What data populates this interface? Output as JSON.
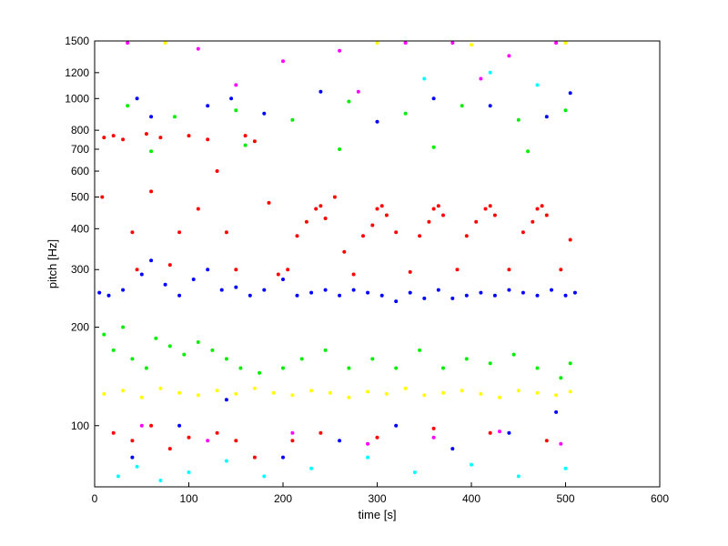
{
  "chart_data": {
    "type": "scatter",
    "title": "",
    "xlabel": "time [s]",
    "ylabel": "pitch [Hz]",
    "xlim": [
      0,
      600
    ],
    "ylim": [
      65,
      1500
    ],
    "yscale": "log",
    "grid": false,
    "legend": "none",
    "x_ticks": [
      0,
      100,
      200,
      300,
      400,
      500,
      600
    ],
    "y_ticks": [
      100,
      200,
      300,
      400,
      500,
      600,
      700,
      800,
      1000,
      1200,
      1500
    ],
    "series": [
      {
        "color": "#ff0000",
        "points": [
          [
            8,
            500
          ],
          [
            10,
            760
          ],
          [
            20,
            770
          ],
          [
            30,
            750
          ],
          [
            40,
            390
          ],
          [
            45,
            300
          ],
          [
            55,
            780
          ],
          [
            60,
            520
          ],
          [
            70,
            760
          ],
          [
            80,
            310
          ],
          [
            90,
            390
          ],
          [
            100,
            770
          ],
          [
            110,
            460
          ],
          [
            120,
            750
          ],
          [
            130,
            600
          ],
          [
            140,
            390
          ],
          [
            150,
            300
          ],
          [
            160,
            770
          ],
          [
            170,
            740
          ],
          [
            185,
            480
          ],
          [
            195,
            290
          ],
          [
            205,
            300
          ],
          [
            215,
            380
          ],
          [
            225,
            420
          ],
          [
            235,
            460
          ],
          [
            240,
            470
          ],
          [
            245,
            430
          ],
          [
            255,
            500
          ],
          [
            265,
            340
          ],
          [
            275,
            290
          ],
          [
            285,
            380
          ],
          [
            295,
            410
          ],
          [
            300,
            460
          ],
          [
            305,
            470
          ],
          [
            310,
            440
          ],
          [
            320,
            390
          ],
          [
            335,
            295
          ],
          [
            345,
            380
          ],
          [
            355,
            420
          ],
          [
            360,
            460
          ],
          [
            365,
            470
          ],
          [
            370,
            440
          ],
          [
            385,
            300
          ],
          [
            395,
            380
          ],
          [
            405,
            420
          ],
          [
            415,
            460
          ],
          [
            420,
            470
          ],
          [
            425,
            440
          ],
          [
            440,
            300
          ],
          [
            455,
            390
          ],
          [
            465,
            420
          ],
          [
            470,
            460
          ],
          [
            475,
            470
          ],
          [
            480,
            440
          ],
          [
            495,
            300
          ],
          [
            505,
            370
          ],
          [
            20,
            95
          ],
          [
            40,
            90
          ],
          [
            60,
            100
          ],
          [
            80,
            85
          ],
          [
            100,
            92
          ],
          [
            130,
            95
          ],
          [
            150,
            90
          ],
          [
            170,
            80
          ],
          [
            210,
            90
          ],
          [
            240,
            95
          ],
          [
            300,
            92
          ],
          [
            360,
            98
          ],
          [
            420,
            95
          ],
          [
            480,
            90
          ]
        ]
      },
      {
        "color": "#0000ff",
        "points": [
          [
            5,
            255
          ],
          [
            15,
            250
          ],
          [
            30,
            260
          ],
          [
            45,
            1000
          ],
          [
            50,
            290
          ],
          [
            60,
            320
          ],
          [
            75,
            270
          ],
          [
            90,
            250
          ],
          [
            105,
            280
          ],
          [
            120,
            300
          ],
          [
            135,
            260
          ],
          [
            145,
            1000
          ],
          [
            150,
            265
          ],
          [
            165,
            250
          ],
          [
            180,
            260
          ],
          [
            200,
            280
          ],
          [
            215,
            250
          ],
          [
            230,
            255
          ],
          [
            245,
            260
          ],
          [
            260,
            250
          ],
          [
            275,
            260
          ],
          [
            290,
            255
          ],
          [
            305,
            250
          ],
          [
            320,
            240
          ],
          [
            335,
            255
          ],
          [
            350,
            245
          ],
          [
            365,
            260
          ],
          [
            380,
            245
          ],
          [
            395,
            250
          ],
          [
            410,
            255
          ],
          [
            425,
            250
          ],
          [
            440,
            260
          ],
          [
            455,
            255
          ],
          [
            470,
            250
          ],
          [
            485,
            260
          ],
          [
            500,
            250
          ],
          [
            510,
            255
          ],
          [
            40,
            80
          ],
          [
            90,
            100
          ],
          [
            140,
            120
          ],
          [
            200,
            80
          ],
          [
            260,
            90
          ],
          [
            320,
            100
          ],
          [
            380,
            85
          ],
          [
            440,
            95
          ],
          [
            490,
            110
          ],
          [
            60,
            880
          ],
          [
            120,
            950
          ],
          [
            180,
            900
          ],
          [
            240,
            1050
          ],
          [
            300,
            850
          ],
          [
            360,
            1000
          ],
          [
            420,
            950
          ],
          [
            480,
            880
          ],
          [
            505,
            1040
          ]
        ]
      },
      {
        "color": "#00ee00",
        "points": [
          [
            10,
            190
          ],
          [
            20,
            170
          ],
          [
            30,
            200
          ],
          [
            40,
            160
          ],
          [
            55,
            150
          ],
          [
            65,
            185
          ],
          [
            80,
            175
          ],
          [
            95,
            165
          ],
          [
            110,
            180
          ],
          [
            125,
            170
          ],
          [
            140,
            160
          ],
          [
            155,
            150
          ],
          [
            175,
            145
          ],
          [
            200,
            150
          ],
          [
            220,
            160
          ],
          [
            245,
            170
          ],
          [
            270,
            150
          ],
          [
            295,
            160
          ],
          [
            320,
            150
          ],
          [
            345,
            170
          ],
          [
            370,
            150
          ],
          [
            395,
            160
          ],
          [
            420,
            155
          ],
          [
            445,
            165
          ],
          [
            470,
            150
          ],
          [
            495,
            140
          ],
          [
            505,
            155
          ],
          [
            35,
            950
          ],
          [
            85,
            880
          ],
          [
            150,
            920
          ],
          [
            210,
            860
          ],
          [
            270,
            980
          ],
          [
            330,
            900
          ],
          [
            390,
            950
          ],
          [
            450,
            860
          ],
          [
            500,
            920
          ],
          [
            60,
            690
          ],
          [
            160,
            720
          ],
          [
            260,
            700
          ],
          [
            360,
            710
          ],
          [
            460,
            690
          ]
        ]
      },
      {
        "color": "#ffff00",
        "points": [
          [
            10,
            125
          ],
          [
            30,
            128
          ],
          [
            50,
            122
          ],
          [
            70,
            130
          ],
          [
            90,
            126
          ],
          [
            110,
            124
          ],
          [
            130,
            128
          ],
          [
            150,
            125
          ],
          [
            170,
            130
          ],
          [
            190,
            126
          ],
          [
            210,
            124
          ],
          [
            230,
            128
          ],
          [
            250,
            126
          ],
          [
            270,
            122
          ],
          [
            290,
            127
          ],
          [
            310,
            125
          ],
          [
            330,
            130
          ],
          [
            350,
            124
          ],
          [
            370,
            126
          ],
          [
            390,
            128
          ],
          [
            410,
            125
          ],
          [
            430,
            122
          ],
          [
            450,
            128
          ],
          [
            470,
            126
          ],
          [
            490,
            124
          ],
          [
            505,
            127
          ],
          [
            75,
            1480
          ],
          [
            300,
            1480
          ],
          [
            400,
            1460
          ],
          [
            500,
            1480
          ]
        ]
      },
      {
        "color": "#00ffff",
        "points": [
          [
            25,
            70
          ],
          [
            45,
            75
          ],
          [
            70,
            68
          ],
          [
            100,
            72
          ],
          [
            140,
            78
          ],
          [
            180,
            70
          ],
          [
            230,
            74
          ],
          [
            290,
            80
          ],
          [
            340,
            72
          ],
          [
            400,
            76
          ],
          [
            450,
            70
          ],
          [
            500,
            74
          ],
          [
            350,
            1150
          ],
          [
            420,
            1200
          ],
          [
            470,
            1100
          ]
        ]
      },
      {
        "color": "#ff00ff",
        "points": [
          [
            35,
            1480
          ],
          [
            110,
            1420
          ],
          [
            200,
            1300
          ],
          [
            260,
            1400
          ],
          [
            330,
            1480
          ],
          [
            380,
            1480
          ],
          [
            440,
            1350
          ],
          [
            490,
            1480
          ],
          [
            50,
            100
          ],
          [
            120,
            90
          ],
          [
            210,
            95
          ],
          [
            290,
            88
          ],
          [
            360,
            92
          ],
          [
            430,
            96
          ],
          [
            495,
            88
          ],
          [
            150,
            1100
          ],
          [
            280,
            1050
          ],
          [
            410,
            1150
          ]
        ]
      }
    ]
  }
}
